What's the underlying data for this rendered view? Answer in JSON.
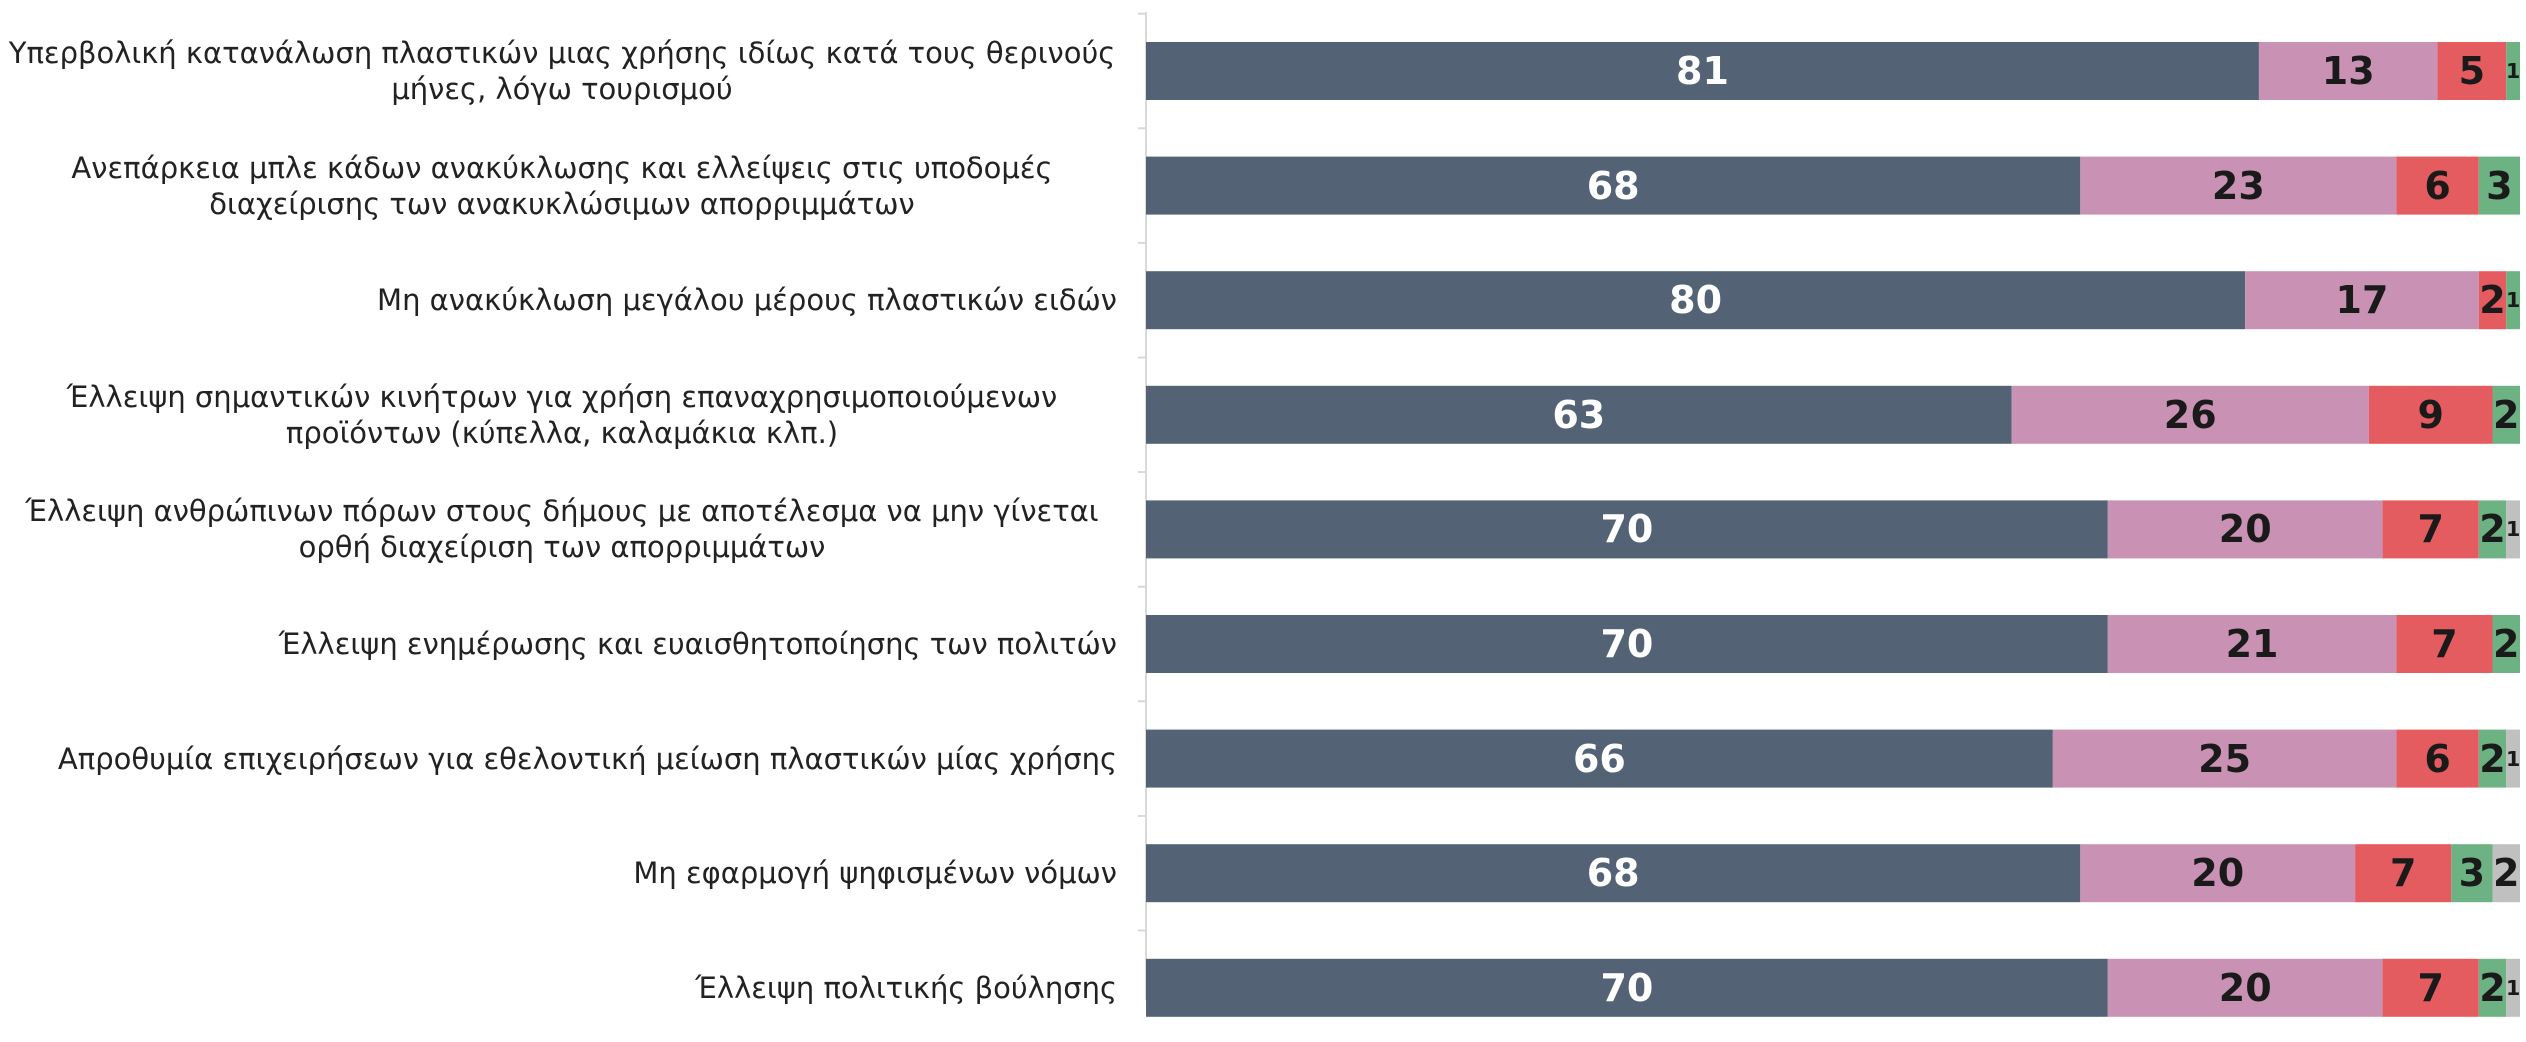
{
  "chart_data": {
    "type": "stacked-barh",
    "categories": [
      "Υπερβολική κατανάλωση πλαστικών μιας χρήσης ιδίως κατά τους θερινούς μήνες, λόγω τουρισμού",
      "Ανεπάρκεια μπλε κάδων ανακύκλωσης και ελλείψεις στις υποδομές διαχείρισης των ανακυκλώσιμων απορριμμάτων",
      "Μη ανακύκλωση μεγάλου μέρους πλαστικών  ειδών",
      "Έλλειψη σημαντικών κινήτρων για χρήση επαναχρησιμοποιούμενων προϊόντων (κύπελλα, καλαμάκια κλπ.)",
      "Έλλειψη ανθρώπινων πόρων στους δήμους με αποτέλεσμα να μην γίνεται ορθή διαχείριση των απορριμμάτων",
      "Έλλειψη ενημέρωσης και ευαισθητοποίησης των πολιτών",
      "Απροθυμία επιχειρήσεων για εθελοντική μείωση πλαστικών μίας χρήσης",
      "Μη εφαρμογή ψηφισμένων νόμων ",
      "Έλλειψη πολιτικής βούλησης"
    ],
    "series": [
      {
        "color": "#536375",
        "values": [
          81,
          68,
          80,
          63,
          70,
          70,
          66,
          68,
          70
        ]
      },
      {
        "color": "#c992b4",
        "values": [
          13,
          23,
          17,
          26,
          20,
          21,
          25,
          20,
          20
        ]
      },
      {
        "color": "#e45c5f",
        "values": [
          5,
          6,
          2,
          9,
          7,
          7,
          6,
          7,
          7
        ]
      },
      {
        "color": "#6db283",
        "values": [
          1,
          3,
          1,
          2,
          2,
          2,
          2,
          3,
          2
        ]
      },
      {
        "color": "#c0c0c0",
        "values": [
          null,
          null,
          null,
          null,
          1,
          null,
          1,
          2,
          1
        ]
      }
    ],
    "xlim": [
      0,
      100
    ]
  }
}
